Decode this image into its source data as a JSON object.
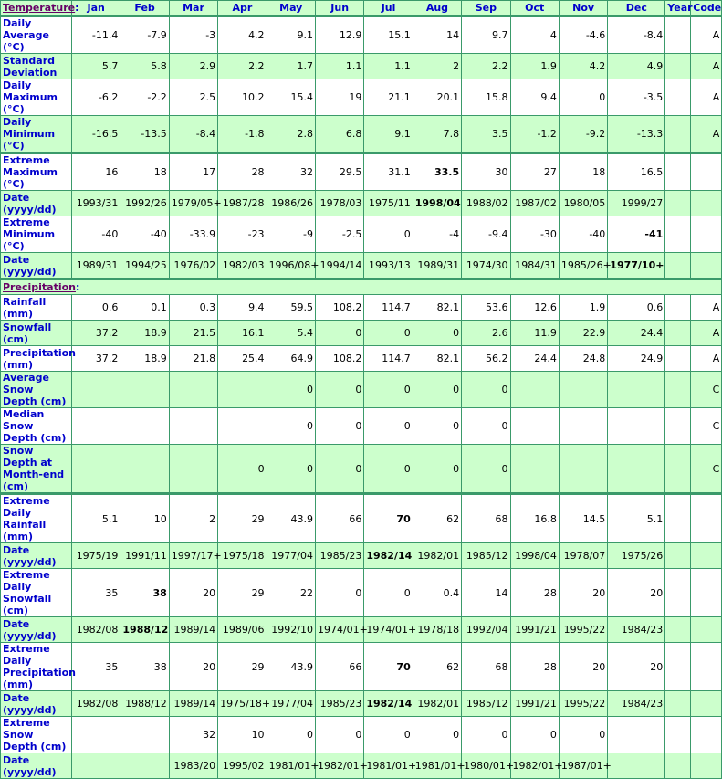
{
  "header": {
    "section": "Temperature",
    "columns": [
      "Jan",
      "Feb",
      "Mar",
      "Apr",
      "May",
      "Jun",
      "Jul",
      "Aug",
      "Sep",
      "Oct",
      "Nov",
      "Dec",
      "Year",
      "Code"
    ]
  },
  "colors": {
    "border": "#3a9a6a",
    "green_row": "#ccffcc",
    "label": "#0000cc",
    "section_link": "#660066"
  },
  "temperature": [
    {
      "label": "Daily Average (°C)",
      "values": [
        "-11.4",
        "-7.9",
        "-3",
        "4.2",
        "9.1",
        "12.9",
        "15.1",
        "14",
        "9.7",
        "4",
        "-4.6",
        "-8.4"
      ],
      "year": "",
      "code": "A"
    },
    {
      "label": "Standard Deviation",
      "values": [
        "5.7",
        "5.8",
        "2.9",
        "2.2",
        "1.7",
        "1.1",
        "1.1",
        "2",
        "2.2",
        "1.9",
        "4.2",
        "4.9"
      ],
      "year": "",
      "code": "A"
    },
    {
      "label": "Daily Maximum (°C)",
      "values": [
        "-6.2",
        "-2.2",
        "2.5",
        "10.2",
        "15.4",
        "19",
        "21.1",
        "20.1",
        "15.8",
        "9.4",
        "0",
        "-3.5"
      ],
      "year": "",
      "code": "A"
    },
    {
      "label": "Daily Minimum (°C)",
      "values": [
        "-16.5",
        "-13.5",
        "-8.4",
        "-1.8",
        "2.8",
        "6.8",
        "9.1",
        "7.8",
        "3.5",
        "-1.2",
        "-9.2",
        "-13.3"
      ],
      "year": "",
      "code": "A"
    },
    {
      "label": "Extreme Maximum (°C)",
      "values": [
        "16",
        "18",
        "17",
        "28",
        "32",
        "29.5",
        "31.1",
        "33.5",
        "30",
        "27",
        "18",
        "16.5"
      ],
      "year": "",
      "code": "",
      "bold": 7
    },
    {
      "label": "Date (yyyy/dd)",
      "values": [
        "1993/31",
        "1992/26",
        "1979/05+",
        "1987/28",
        "1986/26",
        "1978/03",
        "1975/11",
        "1998/04",
        "1988/02",
        "1987/02",
        "1980/05",
        "1999/27"
      ],
      "year": "",
      "code": "",
      "bold": 7
    },
    {
      "label": "Extreme Minimum (°C)",
      "values": [
        "-40",
        "-40",
        "-33.9",
        "-23",
        "-9",
        "-2.5",
        "0",
        "-4",
        "-9.4",
        "-30",
        "-40",
        "-41"
      ],
      "year": "",
      "code": "",
      "bold": 11
    },
    {
      "label": "Date (yyyy/dd)",
      "values": [
        "1989/31",
        "1994/25",
        "1976/02",
        "1982/03",
        "1996/08+",
        "1994/14",
        "1993/13",
        "1989/31",
        "1974/30",
        "1984/31",
        "1985/26+",
        "1977/10+"
      ],
      "year": "",
      "code": "",
      "bold": 11
    }
  ],
  "precip_section": "Precipitation",
  "precipitation": [
    {
      "label": "Rainfall (mm)",
      "values": [
        "0.6",
        "0.1",
        "0.3",
        "9.4",
        "59.5",
        "108.2",
        "114.7",
        "82.1",
        "53.6",
        "12.6",
        "1.9",
        "0.6"
      ],
      "year": "",
      "code": "A"
    },
    {
      "label": "Snowfall (cm)",
      "values": [
        "37.2",
        "18.9",
        "21.5",
        "16.1",
        "5.4",
        "0",
        "0",
        "0",
        "2.6",
        "11.9",
        "22.9",
        "24.4"
      ],
      "year": "",
      "code": "A"
    },
    {
      "label": "Precipitation (mm)",
      "values": [
        "37.2",
        "18.9",
        "21.8",
        "25.4",
        "64.9",
        "108.2",
        "114.7",
        "82.1",
        "56.2",
        "24.4",
        "24.8",
        "24.9"
      ],
      "year": "",
      "code": "A"
    },
    {
      "label": "Average Snow Depth (cm)",
      "values": [
        "",
        "",
        "",
        "",
        "0",
        "0",
        "0",
        "0",
        "0",
        "",
        "",
        ""
      ],
      "year": "",
      "code": "C"
    },
    {
      "label": "Median Snow Depth (cm)",
      "values": [
        "",
        "",
        "",
        "",
        "0",
        "0",
        "0",
        "0",
        "0",
        "",
        "",
        ""
      ],
      "year": "",
      "code": "C"
    },
    {
      "label": "Snow Depth at Month-end (cm)",
      "values": [
        "",
        "",
        "",
        "0",
        "0",
        "0",
        "0",
        "0",
        "0",
        "",
        "",
        ""
      ],
      "year": "",
      "code": "C"
    },
    {
      "label": "Extreme Daily Rainfall (mm)",
      "values": [
        "5.1",
        "10",
        "2",
        "29",
        "43.9",
        "66",
        "70",
        "62",
        "68",
        "16.8",
        "14.5",
        "5.1"
      ],
      "year": "",
      "code": "",
      "bold": 6
    },
    {
      "label": "Date (yyyy/dd)",
      "values": [
        "1975/19",
        "1991/11",
        "1997/17+",
        "1975/18",
        "1977/04",
        "1985/23",
        "1982/14",
        "1982/01",
        "1985/12",
        "1998/04",
        "1978/07",
        "1975/26"
      ],
      "year": "",
      "code": "",
      "bold": 6
    },
    {
      "label": "Extreme Daily Snowfall (cm)",
      "values": [
        "35",
        "38",
        "20",
        "29",
        "22",
        "0",
        "0",
        "0.4",
        "14",
        "28",
        "20",
        "20"
      ],
      "year": "",
      "code": "",
      "bold": 1
    },
    {
      "label": "Date (yyyy/dd)",
      "values": [
        "1982/08",
        "1988/12",
        "1989/14",
        "1989/06",
        "1992/10",
        "1974/01+",
        "1974/01+",
        "1978/18",
        "1992/04",
        "1991/21",
        "1995/22",
        "1984/23"
      ],
      "year": "",
      "code": "",
      "bold": 1
    },
    {
      "label": "Extreme Daily Precipitation (mm)",
      "values": [
        "35",
        "38",
        "20",
        "29",
        "43.9",
        "66",
        "70",
        "62",
        "68",
        "28",
        "20",
        "20"
      ],
      "year": "",
      "code": "",
      "bold": 6
    },
    {
      "label": "Date (yyyy/dd)",
      "values": [
        "1982/08",
        "1988/12",
        "1989/14",
        "1975/18+",
        "1977/04",
        "1985/23",
        "1982/14",
        "1982/01",
        "1985/12",
        "1991/21",
        "1995/22",
        "1984/23"
      ],
      "year": "",
      "code": "",
      "bold": 6
    },
    {
      "label": "Extreme Snow Depth (cm)",
      "values": [
        "",
        "",
        "32",
        "10",
        "0",
        "0",
        "0",
        "0",
        "0",
        "0",
        "0",
        ""
      ],
      "year": "",
      "code": ""
    },
    {
      "label": "Date (yyyy/dd)",
      "values": [
        "",
        "",
        "1983/20",
        "1995/02",
        "1981/01+",
        "1982/01+",
        "1981/01+",
        "1981/01+",
        "1980/01+",
        "1982/01+",
        "1987/01+",
        ""
      ],
      "year": "",
      "code": ""
    }
  ]
}
